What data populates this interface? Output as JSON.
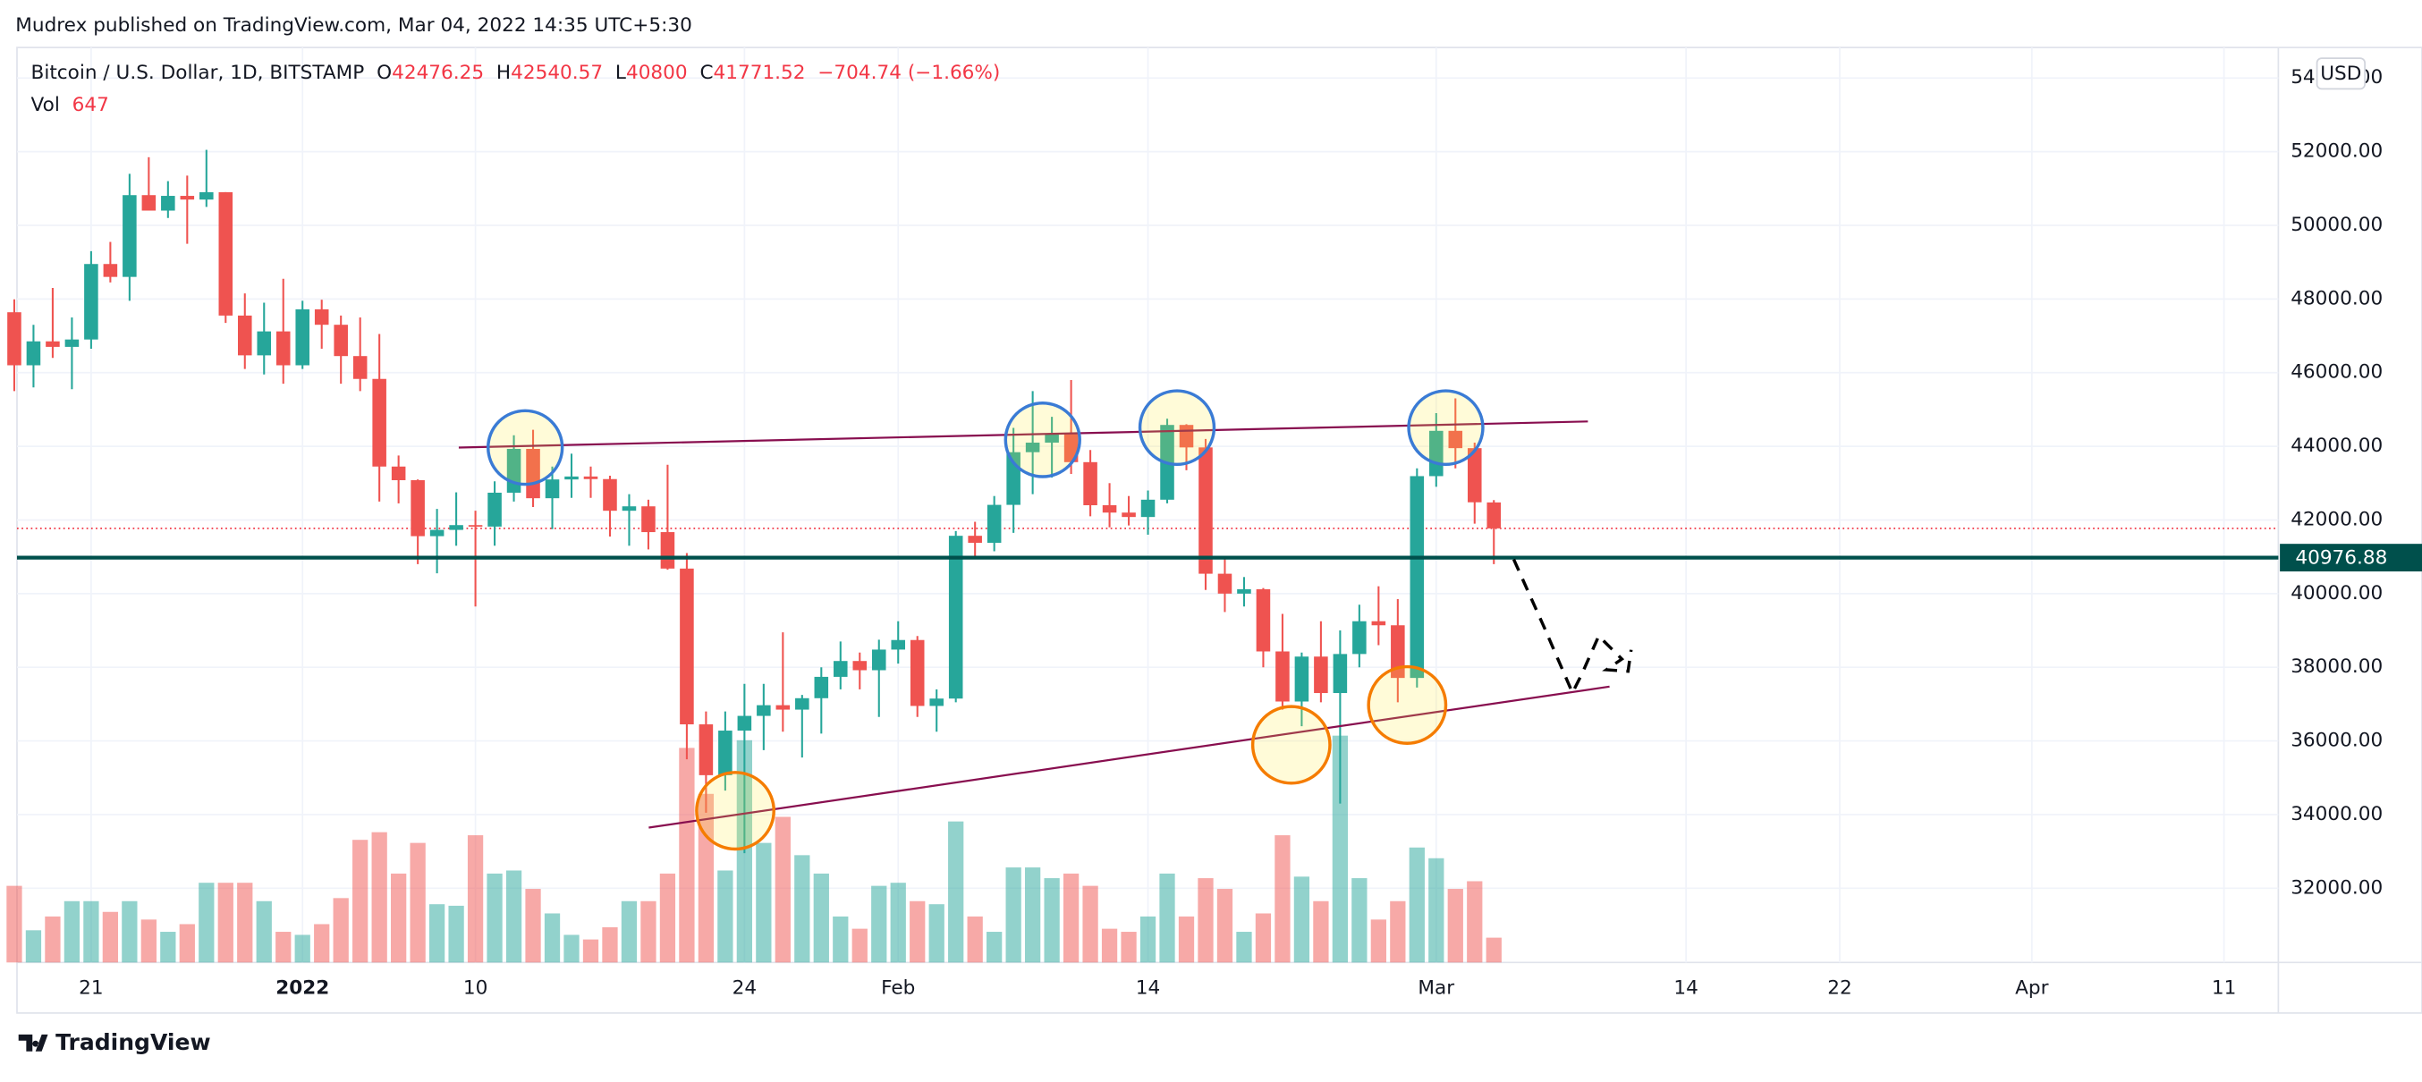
{
  "header": "Mudrex published on TradingView.com, Mar 04, 2022 14:35 UTC+5:30",
  "footer": "TradingView",
  "chart_data": {
    "type": "candlestick",
    "title": "Bitcoin / U.S. Dollar, 1D, BITSTAMP",
    "legend_keys": [
      "O",
      "H",
      "L",
      "C"
    ],
    "change": {
      "value": -704.74,
      "label": "−704.74"
    },
    "change_pct": {
      "value": -1.66,
      "label": "(−1.66%)"
    },
    "volume_label": "Vol",
    "currency": "USD",
    "up_color": "#26a69a",
    "down_color": "#ef5350",
    "price_line": {
      "value": 40976.88,
      "label": "40976.88"
    },
    "last_close_line": 41771.52,
    "ylim": [
      30900,
      54400
    ],
    "yticks": [
      {
        "value": 32000,
        "label": "32000.00"
      },
      {
        "value": 34000,
        "label": "34000.00"
      },
      {
        "value": 36000,
        "label": "36000.00"
      },
      {
        "value": 38000,
        "label": "38000.00"
      },
      {
        "value": 40000,
        "label": "40000.00"
      },
      {
        "value": 42000,
        "label": "42000.00"
      },
      {
        "value": 44000,
        "label": "44000.00"
      },
      {
        "value": 46000,
        "label": "46000.00"
      },
      {
        "value": 48000,
        "label": "48000.00"
      },
      {
        "value": 50000,
        "label": "50000.00"
      },
      {
        "value": 52000,
        "label": "52000.00"
      },
      {
        "value": 54000,
        "label": "54000.00"
      }
    ],
    "xticks": [
      {
        "value": "2021-12-21",
        "label": "21"
      },
      {
        "value": "2022-01-01",
        "label": "2022"
      },
      {
        "value": "2022-01-10",
        "label": "10"
      },
      {
        "value": "2022-01-24",
        "label": "24"
      },
      {
        "value": "2022-02-01",
        "label": "Feb"
      },
      {
        "value": "2022-02-14",
        "label": "14"
      },
      {
        "value": "2022-03-01",
        "label": "Mar"
      },
      {
        "value": "2022-03-14",
        "label": "14"
      },
      {
        "value": "2022-03-22",
        "label": "22"
      },
      {
        "value": "2022-04-01",
        "label": "Apr"
      },
      {
        "value": "2022-04-11",
        "label": "11"
      }
    ],
    "grid": true,
    "x": [
      "2021-12-17",
      "2021-12-18",
      "2021-12-19",
      "2021-12-20",
      "2021-12-21",
      "2021-12-22",
      "2021-12-23",
      "2021-12-24",
      "2021-12-25",
      "2021-12-26",
      "2021-12-27",
      "2021-12-28",
      "2021-12-29",
      "2021-12-30",
      "2021-12-31",
      "2022-01-01",
      "2022-01-02",
      "2022-01-03",
      "2022-01-04",
      "2022-01-05",
      "2022-01-06",
      "2022-01-07",
      "2022-01-08",
      "2022-01-09",
      "2022-01-10",
      "2022-01-11",
      "2022-01-12",
      "2022-01-13",
      "2022-01-14",
      "2022-01-15",
      "2022-01-16",
      "2022-01-17",
      "2022-01-18",
      "2022-01-19",
      "2022-01-20",
      "2022-01-21",
      "2022-01-22",
      "2022-01-23",
      "2022-01-24",
      "2022-01-25",
      "2022-01-26",
      "2022-01-27",
      "2022-01-28",
      "2022-01-29",
      "2022-01-30",
      "2022-01-31",
      "2022-02-01",
      "2022-02-02",
      "2022-02-03",
      "2022-02-04",
      "2022-02-05",
      "2022-02-06",
      "2022-02-07",
      "2022-02-08",
      "2022-02-09",
      "2022-02-10",
      "2022-02-11",
      "2022-02-12",
      "2022-02-13",
      "2022-02-14",
      "2022-02-15",
      "2022-02-16",
      "2022-02-17",
      "2022-02-18",
      "2022-02-19",
      "2022-02-20",
      "2022-02-21",
      "2022-02-22",
      "2022-02-23",
      "2022-02-24",
      "2022-02-25",
      "2022-02-26",
      "2022-02-27",
      "2022-02-28",
      "2022-03-01",
      "2022-03-02",
      "2022-03-03",
      "2022-03-04"
    ],
    "series": [
      {
        "name": "Bitcoin / U.S. Dollar",
        "open": [
          47640,
          46200,
          46850,
          46700,
          46900,
          48950,
          48600,
          50820,
          50400,
          50800,
          50700,
          50900,
          47550,
          46470,
          47120,
          46200,
          47720,
          47300,
          46450,
          45830,
          43450,
          43080,
          41560,
          41730,
          41860,
          41820,
          42740,
          43930,
          42590,
          43100,
          43180,
          43110,
          42250,
          42370,
          41670,
          40680,
          36450,
          35070,
          36280,
          36680,
          36970,
          36850,
          37160,
          37740,
          38170,
          37920,
          38480,
          38740,
          36950,
          37150,
          41570,
          41380,
          42410,
          43840,
          44100,
          44350,
          43570,
          42400,
          42200,
          42080,
          42550,
          44580,
          43970,
          40540,
          40000,
          40120,
          38430,
          37070,
          38290,
          37300,
          38360,
          39250,
          39140,
          37710,
          43190,
          44420,
          43950,
          42476.25
        ],
        "high": [
          47990,
          47300,
          48300,
          47500,
          49300,
          49550,
          51400,
          51850,
          51200,
          51350,
          52050,
          50900,
          48150,
          47900,
          48550,
          47950,
          47980,
          47550,
          47500,
          47050,
          43750,
          43100,
          42300,
          42750,
          42250,
          43050,
          44300,
          44450,
          43450,
          43800,
          43450,
          43200,
          42700,
          42550,
          43500,
          41100,
          36800,
          36800,
          37550,
          37550,
          38950,
          37250,
          38000,
          38700,
          38400,
          38750,
          39250,
          38850,
          37400,
          41700,
          41950,
          42650,
          44500,
          45500,
          44800,
          45800,
          43900,
          43000,
          42650,
          42800,
          44750,
          44600,
          44200,
          40950,
          40450,
          40150,
          39450,
          38400,
          39250,
          39000,
          39700,
          40200,
          39850,
          43400,
          44900,
          45300,
          44100,
          42540.57
        ],
        "low": [
          45500,
          45600,
          46400,
          45550,
          46650,
          48450,
          47950,
          50450,
          50200,
          49500,
          50500,
          47350,
          46100,
          45950,
          45700,
          46100,
          46650,
          45700,
          45500,
          42500,
          42450,
          40800,
          40550,
          41300,
          39650,
          41300,
          42500,
          42350,
          41750,
          42600,
          42600,
          41550,
          41300,
          41200,
          40650,
          35500,
          34050,
          34650,
          32950,
          35750,
          36250,
          35550,
          36200,
          37400,
          37400,
          36650,
          38100,
          36650,
          36250,
          37050,
          40950,
          41150,
          41650,
          42700,
          43150,
          43250,
          42100,
          41800,
          41850,
          41600,
          42450,
          43350,
          40100,
          39500,
          39650,
          38000,
          36850,
          36400,
          37050,
          34300,
          38000,
          38600,
          37050,
          37450,
          42900,
          43400,
          41900,
          40800
        ],
        "close": [
          46200,
          46850,
          46700,
          46900,
          48950,
          48600,
          50820,
          50400,
          50800,
          50700,
          50900,
          47550,
          46470,
          47120,
          46200,
          47720,
          47300,
          46450,
          45830,
          43450,
          43080,
          41560,
          41730,
          41860,
          41820,
          42740,
          43930,
          42590,
          43100,
          43180,
          43110,
          42250,
          42370,
          41670,
          40680,
          36450,
          35070,
          36280,
          36680,
          36970,
          36850,
          37160,
          37740,
          38170,
          37920,
          38480,
          38740,
          36950,
          37150,
          41570,
          41380,
          42410,
          43840,
          44100,
          44350,
          43570,
          42400,
          42200,
          42080,
          42550,
          44580,
          43970,
          40540,
          40000,
          40120,
          38430,
          37070,
          38290,
          37300,
          38360,
          39250,
          39140,
          37710,
          43190,
          44420,
          43950,
          42480,
          41771.52
        ],
        "volume": [
          2000,
          840,
          1200,
          1600,
          1600,
          1320,
          1600,
          1120,
          800,
          1000,
          2080,
          2080,
          2080,
          1600,
          800,
          720,
          1000,
          1680,
          3200,
          3400,
          2320,
          3120,
          1520,
          1480,
          3320,
          2320,
          2400,
          1920,
          1280,
          720,
          600,
          920,
          1600,
          1600,
          2320,
          5600,
          4400,
          2400,
          5800,
          3120,
          3800,
          2800,
          2320,
          1200,
          880,
          2000,
          2080,
          1600,
          1520,
          3680,
          1200,
          800,
          2480,
          2480,
          2200,
          2320,
          2000,
          880,
          800,
          1200,
          2320,
          1200,
          2200,
          1920,
          800,
          1280,
          3320,
          2240,
          1600,
          5920,
          2200,
          1120,
          1600,
          3000,
          2720,
          1920,
          2120,
          647
        ]
      }
    ]
  }
}
